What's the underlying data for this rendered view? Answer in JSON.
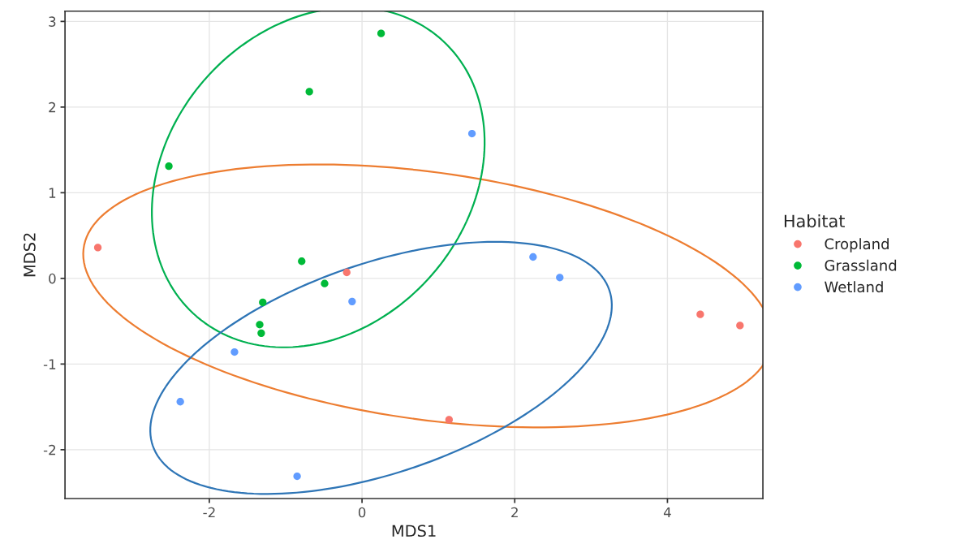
{
  "chart_data": {
    "type": "scatter",
    "xlabel": "MDS1",
    "ylabel": "MDS2",
    "legend_title": "Habitat",
    "legend": "right",
    "grid": true,
    "marker": "circle",
    "xlim": [
      -3.89,
      5.25
    ],
    "ylim": [
      -2.57,
      3.12
    ],
    "xticks": [
      -2,
      0,
      2,
      4
    ],
    "yticks": [
      -2,
      -1,
      0,
      1,
      2,
      3
    ],
    "series": [
      {
        "name": "Cropland",
        "color": "#f8766d",
        "x": [
          -3.46,
          -0.2,
          4.43,
          4.95,
          1.14
        ],
        "values": [
          0.36,
          0.07,
          -0.42,
          -0.55,
          -1.65
        ]
      },
      {
        "name": "Grassland",
        "color": "#00ba38",
        "x": [
          0.25,
          -0.69,
          -2.53,
          -0.79,
          -0.49,
          -1.3,
          -1.34,
          -1.32
        ],
        "values": [
          2.86,
          2.18,
          1.31,
          0.2,
          -0.06,
          -0.28,
          -0.54,
          -0.64
        ]
      },
      {
        "name": "Wetland",
        "color": "#619cff",
        "x": [
          1.44,
          2.24,
          2.59,
          -0.13,
          -1.67,
          -2.38,
          -0.85
        ],
        "values": [
          1.69,
          0.25,
          0.01,
          -0.27,
          -0.86,
          -1.44,
          -2.31
        ]
      }
    ]
  }
}
